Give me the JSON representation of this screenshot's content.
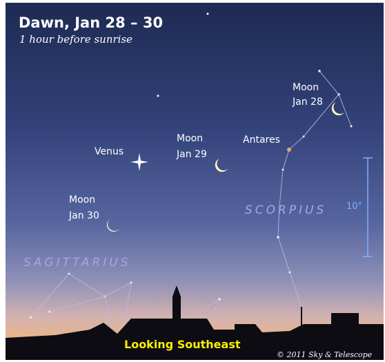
{
  "header": {
    "title": "Dawn, Jan 28 – 30",
    "subtitle": "1 hour before sunrise"
  },
  "objects": [
    {
      "lines": [
        "Moon",
        "Jan 28"
      ]
    },
    {
      "lines": [
        "Moon",
        "Jan 29"
      ]
    },
    {
      "lines": [
        "Moon",
        "Jan 30"
      ]
    },
    {
      "lines": [
        "Venus"
      ]
    },
    {
      "lines": [
        "Antares"
      ]
    }
  ],
  "constellations": [
    "SCORPIUS",
    "SAGITTARIUS"
  ],
  "scale": "10°",
  "direction": "Looking Southeast",
  "credit": "© 2011 Sky & Telescope"
}
